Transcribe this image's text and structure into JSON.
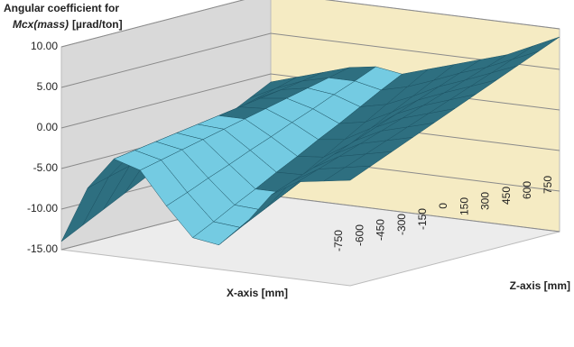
{
  "chart_data": {
    "type": "surface",
    "title": [
      "Angular coefficient for",
      "Mcx(mass)",
      "[µrad/ton]"
    ],
    "x_label": "X-axis [mm]",
    "z_label": "Z-axis [mm]",
    "ylim": [
      -15,
      10
    ],
    "yticks": [
      {
        "value": -15,
        "label": "-15.00"
      },
      {
        "value": -10,
        "label": "-10.00"
      },
      {
        "value": -5,
        "label": "-5.00"
      },
      {
        "value": 0,
        "label": "0.00"
      },
      {
        "value": 5,
        "label": "5.00"
      },
      {
        "value": 10,
        "label": "10.00"
      }
    ],
    "grid": true,
    "colors": {
      "light": "#74cbe2",
      "dark": "#2e6f80",
      "edge": "#1c5364"
    },
    "series": [
      {
        "name": "-750",
        "values": [
          -14,
          -7,
          -3,
          -4,
          -8,
          -11.5,
          -12,
          -9,
          -5,
          -3,
          -2.5,
          -2
        ]
      },
      {
        "name": "-600",
        "values": [
          -12.7,
          -6.3,
          -2.6,
          -3.4,
          -7.0,
          -10.2,
          -10.5,
          -7.7,
          -4.0,
          -2.1,
          -1.5,
          -0.9
        ]
      },
      {
        "name": "-450",
        "values": [
          -11.4,
          -5.6,
          -2.2,
          -2.8,
          -5.9,
          -8.8,
          -9.0,
          -6.4,
          -3.0,
          -1.2,
          -0.5,
          0.2
        ]
      },
      {
        "name": "-300",
        "values": [
          -10.1,
          -4.9,
          -1.8,
          -2.2,
          -4.9,
          -7.5,
          -7.5,
          -5.1,
          -2.0,
          -0.3,
          0.5,
          1.3
        ]
      },
      {
        "name": "-150",
        "values": [
          -8.8,
          -4.2,
          -1.4,
          -1.6,
          -3.8,
          -6.1,
          -6.0,
          -3.8,
          -1.0,
          0.6,
          1.5,
          2.4
        ]
      },
      {
        "name": "0",
        "values": [
          -7.5,
          -3.5,
          -1.0,
          -1.0,
          -2.8,
          -4.8,
          -4.5,
          -2.5,
          0.0,
          1.5,
          2.5,
          3.5
        ]
      },
      {
        "name": "150",
        "values": [
          -6.2,
          -2.8,
          -0.6,
          -0.4,
          -1.7,
          -3.4,
          -3.0,
          -1.2,
          1.0,
          2.4,
          3.5,
          4.6
        ]
      },
      {
        "name": "300",
        "values": [
          -4.9,
          -2.1,
          -0.2,
          0.2,
          -0.7,
          -2.1,
          -1.5,
          0.1,
          2.0,
          3.3,
          4.5,
          5.7
        ]
      },
      {
        "name": "450",
        "values": [
          -3.6,
          -1.4,
          0.2,
          0.8,
          0.4,
          -0.7,
          0.0,
          1.4,
          3.0,
          4.2,
          5.5,
          6.8
        ]
      },
      {
        "name": "600",
        "values": [
          -2.3,
          -0.7,
          0.6,
          1.4,
          1.4,
          0.7,
          1.5,
          2.7,
          4.0,
          5.1,
          6.5,
          7.9
        ]
      },
      {
        "name": "750",
        "values": [
          -1,
          0,
          1,
          2,
          2.5,
          2,
          3,
          4,
          5,
          6,
          7.5,
          9
        ]
      }
    ]
  }
}
